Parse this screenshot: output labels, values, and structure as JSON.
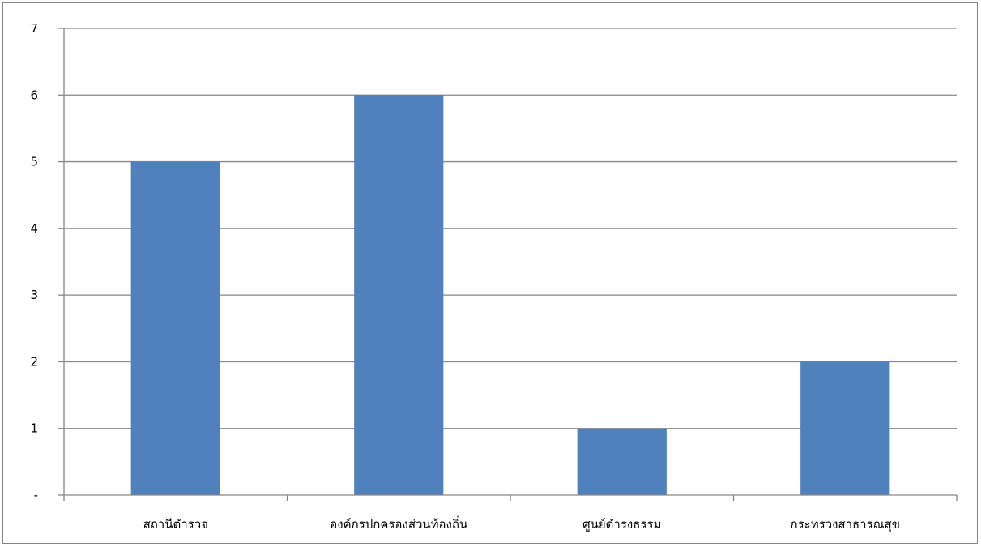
{
  "chart_data": {
    "type": "bar",
    "categories": [
      "สถานีตำรวจ",
      "องค์กรปกครองส่วนท้องถิ่น",
      "ศูนย์ดำรงธรรม",
      "กระทรวงสาธารณสุข"
    ],
    "values": [
      5,
      6,
      1,
      2
    ],
    "title": "",
    "xlabel": "",
    "ylabel": "",
    "ylim": [
      0,
      7
    ],
    "yticks": [
      0,
      1,
      2,
      3,
      4,
      5,
      6,
      7
    ],
    "ytick_labels": [
      "-",
      "1",
      "2",
      "3",
      "4",
      "5",
      "6",
      "7"
    ],
    "grid": true,
    "legend": "none",
    "bar_color": "#4f81bd",
    "grid_color": "#868686"
  }
}
